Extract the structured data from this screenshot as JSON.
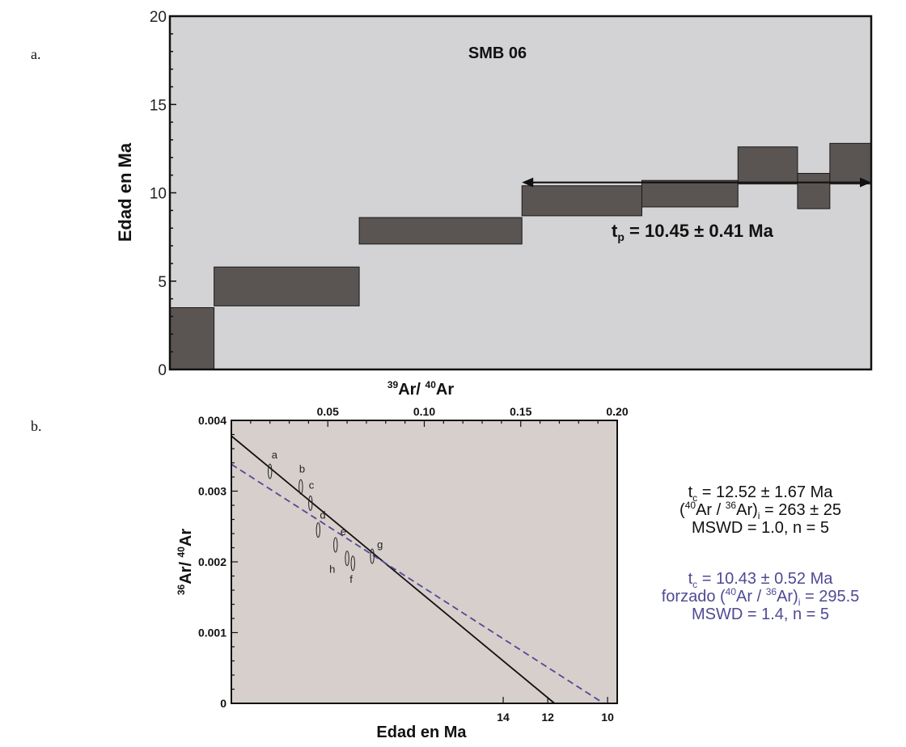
{
  "panels": {
    "a_label": "a.",
    "b_label": "b."
  },
  "chart_data": [
    {
      "type": "bar",
      "title": "SMB 06",
      "ylabel": "Edad en Ma",
      "ylim": [
        0,
        20
      ],
      "yticks": [
        "0",
        "5",
        "10",
        "15",
        "20"
      ],
      "steps": [
        {
          "x0": 0.0,
          "x1": 0.063,
          "low": 0.0,
          "high": 3.5
        },
        {
          "x0": 0.063,
          "x1": 0.27,
          "low": 3.6,
          "high": 5.8
        },
        {
          "x0": 0.27,
          "x1": 0.502,
          "low": 7.1,
          "high": 8.6
        },
        {
          "x0": 0.502,
          "x1": 0.673,
          "low": 8.7,
          "high": 10.4
        },
        {
          "x0": 0.673,
          "x1": 0.81,
          "low": 9.2,
          "high": 10.7
        },
        {
          "x0": 0.81,
          "x1": 0.895,
          "low": 10.5,
          "high": 12.6
        },
        {
          "x0": 0.895,
          "x1": 0.941,
          "low": 9.1,
          "high": 11.1
        },
        {
          "x0": 0.941,
          "x1": 1.0,
          "low": 10.5,
          "high": 12.8
        }
      ],
      "plateau": {
        "x0": 0.502,
        "x1": 1.0,
        "age": 10.45
      },
      "plateau_label": {
        "prefix": "t",
        "sub": "p",
        "rest": " = 10.45 ± 0.41 Ma"
      },
      "colors": {
        "background": "#d3d3d5",
        "steps": "#5a5553"
      }
    },
    {
      "type": "scatter",
      "xlabel_top": {
        "pre": "39",
        "mid": "Ar/ ",
        "sup": "40",
        "post": "Ar"
      },
      "ylabel": {
        "pre": "36",
        "mid": "Ar/ ",
        "sup": "40",
        "post": "Ar"
      },
      "xlabel_bottom": "Edad en Ma",
      "xlim": [
        0,
        0.2
      ],
      "ylim": [
        0,
        0.004
      ],
      "xticks_top": [
        "0.05",
        "0.10",
        "0.15",
        "0.20"
      ],
      "yticks": [
        "0",
        "0.001",
        "0.002",
        "0.003",
        "0.004"
      ],
      "age_ticks": [
        {
          "label": "14",
          "x": 0.1409
        },
        {
          "label": "12",
          "x": 0.164
        },
        {
          "label": "10",
          "x": 0.195
        }
      ],
      "points": [
        {
          "label": "a",
          "x": 0.02,
          "y": 0.00328
        },
        {
          "label": "b",
          "x": 0.036,
          "y": 0.00306
        },
        {
          "label": "c",
          "x": 0.041,
          "y": 0.00283
        },
        {
          "label": "d",
          "x": 0.045,
          "y": 0.00245
        },
        {
          "label": "e",
          "x": 0.054,
          "y": 0.00224
        },
        {
          "label": "h",
          "x": 0.06,
          "y": 0.00205
        },
        {
          "label": "f",
          "x": 0.063,
          "y": 0.00198
        },
        {
          "label": "g",
          "x": 0.073,
          "y": 0.00208
        }
      ],
      "series": [
        {
          "style": "solid",
          "color": "#111111",
          "x0": 0,
          "y0": 0.00378,
          "x1": 0.1675,
          "y1": 0
        },
        {
          "style": "dashed",
          "color": "#4f4a94",
          "x0": 0,
          "y0": 0.00338,
          "x1": 0.193,
          "y1": 0
        }
      ],
      "annotations": {
        "black": [
          {
            "type": "t",
            "sub": "c",
            "rest": " = 12.52 ± 1.67 Ma"
          },
          {
            "type": "ratio",
            "pre": "(",
            "sup1": "40",
            "mid": "Ar / ",
            "sup2": "36",
            "mid2": "Ar)",
            "sub": "i",
            "rest": " = 263 ± 25"
          },
          {
            "type": "plain",
            "text": "MSWD = 1.0, n = 5"
          }
        ],
        "blue": [
          {
            "type": "t",
            "sub": "c",
            "rest": " = 10.43 ± 0.52 Ma"
          },
          {
            "type": "ratio",
            "pre": "forzado (",
            "sup1": "40",
            "mid": "Ar / ",
            "sup2": "36",
            "mid2": "Ar)",
            "sub": "i",
            "rest": " = 295.5"
          },
          {
            "type": "plain",
            "text": "MSWD = 1.4, n = 5"
          }
        ]
      },
      "colors": {
        "background": "#d7cfcb",
        "blue": "#4f4a94"
      }
    }
  ]
}
